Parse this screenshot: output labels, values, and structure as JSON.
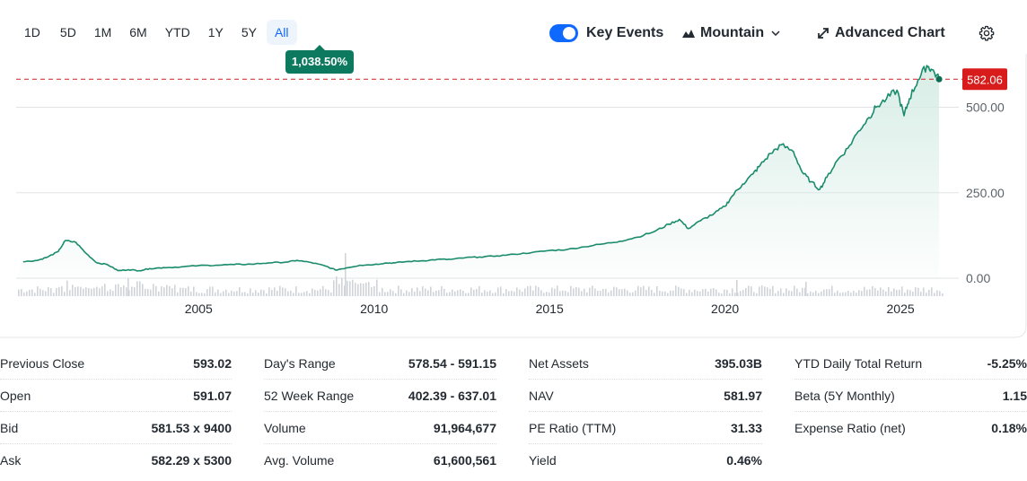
{
  "range_tabs": [
    "1D",
    "5D",
    "1M",
    "6M",
    "YTD",
    "1Y",
    "5Y",
    "All"
  ],
  "active_range": "All",
  "change_badge": "1,038.50%",
  "toolbar": {
    "key_events_label": "Key Events",
    "key_events_on": true,
    "chart_type_label": "Mountain",
    "advanced_label": "Advanced Chart"
  },
  "colors": {
    "line": "#1a8c6c",
    "area_top": "#d6ece5",
    "accent": "#0f69ff",
    "badge_green": "#0d7a5f",
    "price_red": "#d81c1c",
    "volume": "#d0d4d9",
    "grid": "#e0e3e6"
  },
  "chart_data": {
    "type": "area",
    "x_tick_labels": [
      "2005",
      "2010",
      "2015",
      "2020",
      "2025"
    ],
    "y_tick_labels": [
      "500.00",
      "250.00",
      "0.00"
    ],
    "ylim": [
      0,
      630
    ],
    "xlim": [
      1999.8,
      2026.2
    ],
    "current_price_label": "582.06",
    "current_price": 582.06,
    "series": [
      {
        "x": [
          2000.0,
          2000.4,
          2000.7,
          2001.0,
          2001.2,
          2001.5,
          2001.8,
          2002.1,
          2002.4,
          2002.7,
          2003.0,
          2003.3,
          2003.6,
          2004.0,
          2004.5,
          2005.0,
          2005.5,
          2006.0,
          2006.5,
          2007.0,
          2007.5,
          2007.8,
          2008.2,
          2008.6,
          2008.9,
          2009.2,
          2009.6,
          2010.0,
          2010.3,
          2010.6,
          2011.0,
          2011.4,
          2011.8,
          2012.2,
          2012.6,
          2013.0,
          2013.5,
          2014.0,
          2014.5,
          2015.0,
          2015.5,
          2016.0,
          2016.5,
          2017.0,
          2017.5,
          2018.0,
          2018.4,
          2018.7,
          2018.95,
          2019.3,
          2019.7,
          2020.0,
          2020.2,
          2020.5,
          2020.8,
          2021.0,
          2021.3,
          2021.6,
          2021.95,
          2022.2,
          2022.45,
          2022.7,
          2022.9,
          2023.2,
          2023.5,
          2023.8,
          2024.1,
          2024.3,
          2024.6,
          2024.9,
          2025.1,
          2025.25,
          2025.5,
          2025.75,
          2025.9,
          2026.1
        ],
        "y": [
          48,
          52,
          62,
          78,
          110,
          105,
          72,
          45,
          40,
          22,
          25,
          22,
          28,
          31,
          33,
          37,
          38,
          40,
          41,
          45,
          47,
          52,
          46,
          36,
          24,
          30,
          38,
          40,
          44,
          45,
          49,
          51,
          55,
          55,
          60,
          62,
          65,
          70,
          75,
          81,
          84,
          92,
          100,
          108,
          120,
          137,
          158,
          172,
          145,
          168,
          190,
          210,
          240,
          275,
          305,
          330,
          365,
          390,
          370,
          310,
          282,
          260,
          295,
          345,
          380,
          430,
          470,
          500,
          525,
          550,
          475,
          525,
          580,
          622,
          610,
          582
        ]
      }
    ]
  },
  "stats": [
    [
      {
        "label": "Previous Close",
        "value": "593.02"
      },
      {
        "label": "Open",
        "value": "591.07"
      },
      {
        "label": "Bid",
        "value": "581.53 x 9400"
      },
      {
        "label": "Ask",
        "value": "582.29 x 5300"
      }
    ],
    [
      {
        "label": "Day's Range",
        "value": "578.54 - 591.15"
      },
      {
        "label": "52 Week Range",
        "value": "402.39 - 637.01"
      },
      {
        "label": "Volume",
        "value": "91,964,677"
      },
      {
        "label": "Avg. Volume",
        "value": "61,600,561"
      }
    ],
    [
      {
        "label": "Net Assets",
        "value": "395.03B"
      },
      {
        "label": "NAV",
        "value": "581.97"
      },
      {
        "label": "PE Ratio (TTM)",
        "value": "31.33"
      },
      {
        "label": "Yield",
        "value": "0.46%"
      }
    ],
    [
      {
        "label": "YTD Daily Total Return",
        "value": "-5.25%"
      },
      {
        "label": "Beta (5Y Monthly)",
        "value": "1.15"
      },
      {
        "label": "Expense Ratio (net)",
        "value": "0.18%"
      }
    ]
  ]
}
